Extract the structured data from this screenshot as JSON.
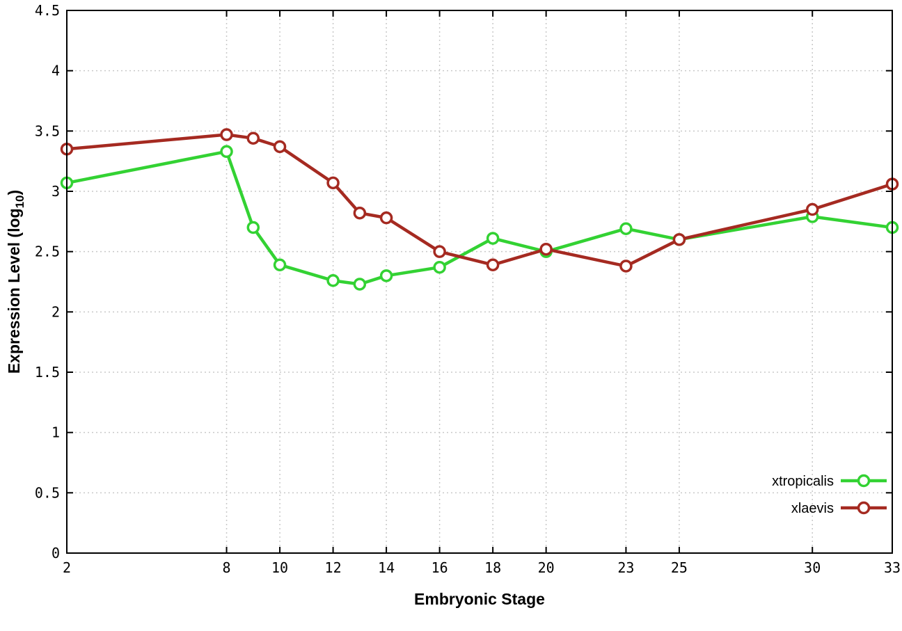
{
  "chart_data": {
    "type": "line",
    "title": "",
    "xlabel": "Embryonic Stage",
    "ylabel": "Expression Level (log10)",
    "ylabel_parts": {
      "main": "Expression Level (log",
      "sub": "10",
      "close": ")"
    },
    "x": [
      2,
      8,
      9,
      10,
      12,
      13,
      14,
      16,
      18,
      20,
      23,
      25,
      30,
      33
    ],
    "series": [
      {
        "name": "xtropicalis",
        "color": "#33d233",
        "values": [
          3.07,
          3.33,
          2.7,
          2.39,
          2.26,
          2.23,
          2.3,
          2.37,
          2.61,
          2.5,
          2.69,
          2.6,
          2.79,
          2.7
        ]
      },
      {
        "name": "xlaevis",
        "color": "#a52a21",
        "values": [
          3.35,
          3.47,
          3.44,
          3.37,
          3.07,
          2.82,
          2.78,
          2.5,
          2.39,
          2.52,
          2.38,
          2.6,
          2.85,
          3.06
        ]
      }
    ],
    "xticks": [
      2,
      8,
      10,
      12,
      14,
      16,
      18,
      20,
      23,
      25,
      30,
      33
    ],
    "yticks": [
      0,
      0.5,
      1,
      1.5,
      2,
      2.5,
      3,
      3.5,
      4,
      4.5
    ],
    "xlim": [
      2,
      33
    ],
    "ylim": [
      0,
      4.5
    ],
    "grid": true,
    "grid_color": "#c8c8c8",
    "legend_position": "bottom-right",
    "background": "#ffffff",
    "axis_color": "#000000",
    "marker": "open-circle"
  }
}
